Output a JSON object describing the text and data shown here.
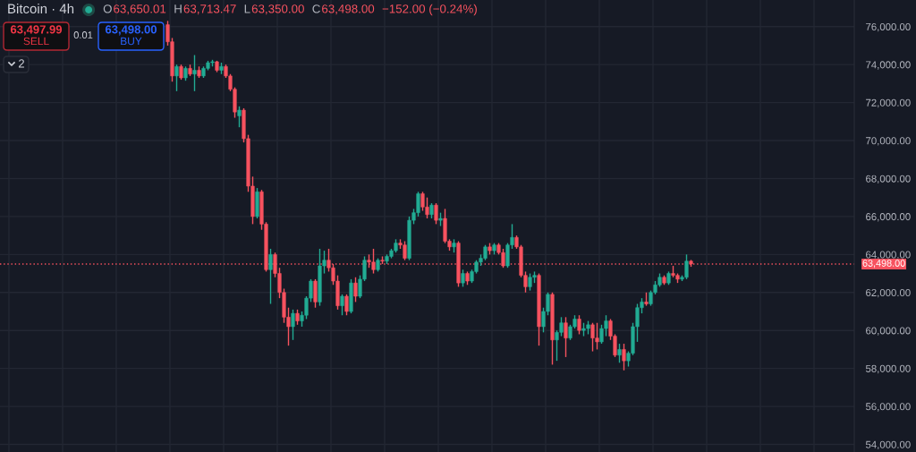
{
  "chart_data": {
    "type": "candlestick",
    "title": "Bitcoin · 4h",
    "categories": [
      null,
      null,
      null,
      null,
      null,
      null,
      null,
      null,
      null,
      null,
      null,
      null,
      null,
      null,
      null,
      null,
      null,
      null,
      null,
      null,
      null,
      null,
      null,
      null,
      null,
      null,
      null,
      null,
      null,
      null,
      null,
      null,
      null,
      null,
      null,
      null,
      null,
      null,
      null,
      null,
      null,
      null,
      null,
      null,
      null,
      null,
      null,
      null,
      null,
      null,
      null,
      null,
      null,
      null,
      null,
      null,
      null,
      null,
      null,
      null,
      null,
      null,
      null,
      null,
      null,
      null,
      null,
      null,
      null,
      null,
      null,
      null,
      null,
      null,
      null,
      null,
      null,
      null,
      null,
      null,
      null,
      null,
      null,
      null,
      null,
      null,
      null,
      null,
      null,
      null,
      null,
      null,
      null,
      null,
      null,
      null,
      null,
      null,
      null,
      null,
      null,
      null,
      null,
      null,
      null,
      null,
      null,
      null,
      null,
      null,
      null,
      null,
      null,
      null,
      null,
      null,
      null,
      null,
      null,
      null,
      null,
      null,
      null,
      null,
      null,
      null,
      null,
      null,
      null,
      null,
      null,
      null,
      null,
      null,
      null,
      null,
      null,
      null,
      null,
      null,
      null,
      null,
      null,
      null,
      null,
      null,
      null,
      null,
      null,
      null,
      null,
      null,
      null,
      null,
      null,
      null,
      null,
      null,
      null,
      null,
      null,
      null,
      null,
      null,
      null,
      null,
      null,
      null,
      null,
      null,
      null,
      null,
      null,
      null,
      null,
      null,
      null,
      null,
      null,
      null,
      null,
      null,
      null,
      null,
      null,
      null,
      null,
      null,
      null,
      null,
      null
    ],
    "ohlc": [
      null,
      null,
      null,
      null,
      null,
      null,
      null,
      null,
      null,
      null,
      null,
      null,
      null,
      null,
      null,
      null,
      null,
      null,
      null,
      null,
      null,
      null,
      null,
      null,
      null,
      null,
      null,
      null,
      null,
      null,
      null,
      null,
      null,
      null,
      null,
      null,
      null,
      [
        76100,
        76300,
        75000,
        75200
      ],
      [
        75200,
        75400,
        73100,
        73400
      ],
      [
        73400,
        74000,
        72600,
        73900
      ],
      [
        73900,
        74000,
        73200,
        73300
      ],
      [
        73300,
        73900,
        73150,
        73800
      ],
      [
        73800,
        74000,
        73400,
        73500
      ],
      [
        73500,
        74500,
        72600,
        73700
      ],
      [
        73700,
        73900,
        73300,
        73400
      ],
      [
        73400,
        73900,
        73300,
        73800
      ],
      [
        73800,
        74200,
        73700,
        74100
      ],
      [
        74100,
        74250,
        73900,
        74150
      ],
      [
        74150,
        74200,
        73600,
        73700
      ],
      [
        73700,
        74100,
        73500,
        73900
      ],
      [
        73900,
        74000,
        73300,
        73400
      ],
      [
        73400,
        73500,
        72600,
        72700
      ],
      [
        72700,
        72800,
        71200,
        71500
      ],
      [
        71300,
        71800,
        70700,
        71600
      ],
      [
        71600,
        71700,
        69900,
        70100
      ],
      [
        70100,
        70300,
        67300,
        67600
      ],
      [
        67600,
        68100,
        65600,
        66000
      ],
      [
        66000,
        67500,
        65900,
        67300
      ],
      [
        67300,
        67400,
        65300,
        65600
      ],
      [
        65600,
        65700,
        63100,
        63200
      ],
      [
        63200,
        64300,
        61400,
        64000
      ],
      [
        64000,
        64100,
        62800,
        63000
      ],
      [
        63000,
        63300,
        61700,
        62000
      ],
      [
        62000,
        62200,
        60400,
        60700
      ],
      [
        60700,
        61200,
        59200,
        60200
      ],
      [
        60200,
        61100,
        59500,
        60900
      ],
      [
        60900,
        61100,
        60300,
        60500
      ],
      [
        60500,
        61000,
        60200,
        60800
      ],
      [
        60800,
        61800,
        60600,
        61700
      ],
      [
        61700,
        62700,
        61500,
        62600
      ],
      [
        62600,
        62700,
        61200,
        61500
      ],
      [
        61500,
        64300,
        61300,
        63400
      ],
      [
        63400,
        64200,
        63000,
        63700
      ],
      [
        63700,
        64300,
        63100,
        63300
      ],
      [
        63300,
        63500,
        62400,
        62600
      ],
      [
        62600,
        62900,
        61100,
        61300
      ],
      [
        61300,
        61900,
        60800,
        61800
      ],
      [
        61800,
        61900,
        60800,
        61000
      ],
      [
        61000,
        62700,
        60900,
        62500
      ],
      [
        62500,
        62800,
        61500,
        61800
      ],
      [
        61800,
        62900,
        61700,
        62700
      ],
      [
        62700,
        63900,
        62600,
        63700
      ],
      [
        63700,
        64000,
        63300,
        63600
      ],
      [
        63600,
        64300,
        63000,
        63200
      ],
      [
        63200,
        63800,
        63100,
        63700
      ],
      [
        63700,
        63900,
        63500,
        63650
      ],
      [
        63650,
        64000,
        63500,
        63900
      ],
      [
        63900,
        64300,
        63800,
        64200
      ],
      [
        64200,
        64800,
        64100,
        64600
      ],
      [
        64600,
        64800,
        64300,
        64500
      ],
      [
        64500,
        64700,
        63700,
        63800
      ],
      [
        63800,
        66000,
        63700,
        65800
      ],
      [
        65800,
        66400,
        65600,
        66200
      ],
      [
        66200,
        67300,
        66000,
        67200
      ],
      [
        67200,
        67300,
        66300,
        66500
      ],
      [
        66500,
        67000,
        65900,
        66100
      ],
      [
        66100,
        66700,
        65900,
        66600
      ],
      [
        66600,
        66700,
        65600,
        65800
      ],
      [
        65800,
        66200,
        65500,
        65900
      ],
      [
        65900,
        66400,
        64600,
        64700
      ],
      [
        64700,
        64800,
        64200,
        64400
      ],
      [
        64400,
        64800,
        64100,
        64600
      ],
      [
        64600,
        64700,
        62300,
        62500
      ],
      [
        62500,
        63200,
        62300,
        63000
      ],
      [
        63000,
        63100,
        62400,
        62600
      ],
      [
        62600,
        63200,
        62500,
        63100
      ],
      [
        63100,
        63700,
        63000,
        63600
      ],
      [
        63600,
        64000,
        63400,
        63800
      ],
      [
        63800,
        64500,
        63700,
        64400
      ],
      [
        64400,
        64600,
        64000,
        64200
      ],
      [
        64200,
        64600,
        64000,
        64500
      ],
      [
        64500,
        64600,
        64000,
        64100
      ],
      [
        64100,
        64300,
        63300,
        63400
      ],
      [
        63400,
        64600,
        63300,
        64500
      ],
      [
        64500,
        65600,
        64300,
        64900
      ],
      [
        64900,
        65000,
        64300,
        64400
      ],
      [
        64400,
        64500,
        62800,
        62900
      ],
      [
        62900,
        63100,
        62000,
        62300
      ],
      [
        62300,
        63000,
        62100,
        62800
      ],
      [
        62800,
        63100,
        62500,
        62900
      ],
      [
        62900,
        63000,
        59200,
        60200
      ],
      [
        60200,
        61200,
        59900,
        61000
      ],
      [
        61000,
        62000,
        60800,
        61900
      ],
      [
        61900,
        62000,
        58200,
        59500
      ],
      [
        59500,
        60000,
        58400,
        59900
      ],
      [
        59900,
        60700,
        59700,
        60400
      ],
      [
        60400,
        60700,
        58600,
        59600
      ],
      [
        59600,
        60300,
        59500,
        60200
      ],
      [
        60200,
        60800,
        60100,
        60600
      ],
      [
        60600,
        60800,
        59800,
        60000
      ],
      [
        60000,
        60400,
        59700,
        60100
      ],
      [
        60100,
        60500,
        59800,
        60300
      ],
      [
        60300,
        60400,
        58900,
        59600
      ],
      [
        59600,
        60400,
        59000,
        59400
      ],
      [
        59400,
        60300,
        59300,
        60100
      ],
      [
        60100,
        60800,
        59700,
        60500
      ],
      [
        60500,
        60600,
        59500,
        59700
      ],
      [
        59700,
        59800,
        58600,
        58700
      ],
      [
        58700,
        59300,
        58300,
        59000
      ],
      [
        59000,
        59300,
        57900,
        58400
      ],
      [
        58400,
        58900,
        58100,
        58800
      ],
      [
        58800,
        60400,
        58700,
        60200
      ],
      [
        60200,
        61400,
        59400,
        61200
      ],
      [
        61200,
        61700,
        60900,
        61500
      ],
      [
        61500,
        62000,
        61300,
        61400
      ],
      [
        61400,
        62100,
        61300,
        62000
      ],
      [
        62000,
        62600,
        61900,
        62400
      ],
      [
        62400,
        63000,
        62300,
        62800
      ],
      [
        62800,
        62900,
        62400,
        62500
      ],
      [
        62500,
        63100,
        62400,
        63000
      ],
      [
        63000,
        63400,
        62800,
        62900
      ],
      [
        62900,
        63000,
        62500,
        62700
      ],
      [
        62700,
        62900,
        62600,
        62800
      ],
      [
        62800,
        64000,
        62700,
        63650
      ],
      [
        63650.01,
        63713.47,
        63350,
        63498
      ],
      null,
      null,
      null,
      null,
      null,
      null,
      null,
      null,
      null,
      null,
      null,
      null,
      null,
      null,
      null,
      null,
      null,
      null,
      null,
      null,
      null,
      null,
      null,
      null,
      null,
      null,
      null,
      null,
      null,
      null,
      null,
      null,
      null,
      null,
      null,
      null
    ],
    "colors": [
      null,
      null,
      null,
      null,
      null,
      null,
      null,
      null,
      null,
      null,
      null,
      null,
      null,
      null,
      null,
      null,
      null,
      null,
      null,
      null,
      null,
      null,
      null,
      null,
      null,
      null,
      null,
      null,
      null,
      null,
      null,
      null,
      null,
      null,
      null,
      null,
      null,
      "#f7525f",
      "#f7525f",
      "#22ab94",
      "#f7525f",
      "#22ab94",
      "#f7525f",
      "#22ab94",
      "#f7525f",
      "#22ab94",
      "#22ab94",
      "#22ab94",
      "#f7525f",
      "#22ab94",
      "#f7525f",
      "#f7525f",
      "#f7525f",
      "#22ab94",
      "#f7525f",
      "#f7525f",
      "#f7525f",
      "#22ab94",
      "#f7525f",
      "#f7525f",
      "#22ab94",
      "#f7525f",
      "#f7525f",
      "#f7525f",
      "#f7525f",
      "#22ab94",
      "#f7525f",
      "#22ab94",
      "#22ab94",
      "#22ab94",
      "#f7525f",
      "#22ab94",
      "#22ab94",
      "#f7525f",
      "#f7525f",
      "#f7525f",
      "#22ab94",
      "#f7525f",
      "#22ab94",
      "#f7525f",
      "#22ab94",
      "#22ab94",
      "#f7525f",
      "#f7525f",
      "#22ab94",
      "#f7525f",
      "#22ab94",
      "#22ab94",
      "#22ab94",
      "#f7525f",
      "#f7525f",
      "#22ab94",
      "#22ab94",
      "#22ab94",
      "#f7525f",
      "#f7525f",
      "#22ab94",
      "#f7525f",
      "#22ab94",
      "#f7525f",
      "#f7525f",
      "#22ab94",
      "#f7525f",
      "#22ab94",
      "#f7525f",
      "#22ab94",
      "#22ab94",
      "#22ab94",
      "#22ab94",
      "#f7525f",
      "#22ab94",
      "#f7525f",
      "#f7525f",
      "#22ab94",
      "#22ab94",
      "#f7525f",
      "#f7525f",
      "#f7525f",
      "#22ab94",
      "#22ab94",
      "#f7525f",
      "#22ab94",
      "#22ab94",
      "#f7525f",
      "#22ab94",
      "#22ab94",
      "#f7525f",
      "#22ab94",
      "#22ab94",
      "#f7525f",
      "#22ab94",
      "#22ab94",
      "#f7525f",
      "#f7525f",
      "#22ab94",
      "#22ab94",
      "#f7525f",
      "#f7525f",
      "#22ab94",
      "#f7525f",
      "#22ab94",
      "#22ab94",
      "#22ab94",
      "#22ab94",
      "#f7525f",
      "#22ab94",
      "#22ab94",
      "#22ab94",
      "#f7525f",
      "#22ab94",
      "#f7525f",
      "#f7525f",
      "#22ab94",
      "#22ab94",
      "#f7525f",
      null,
      null,
      null,
      null,
      null,
      null,
      null,
      null,
      null,
      null,
      null,
      null,
      null,
      null,
      null,
      null,
      null,
      null,
      null,
      null,
      null,
      null,
      null,
      null,
      null,
      null,
      null,
      null,
      null,
      null,
      null,
      null,
      null,
      null,
      null,
      null
    ],
    "ylim": [
      53600,
      77400
    ],
    "yticks": [
      {
        "value": 54000,
        "label": "54,000.00"
      },
      {
        "value": 56000,
        "label": "56,000.00"
      },
      {
        "value": 58000,
        "label": "58,000.00"
      },
      {
        "value": 60000,
        "label": "60,000.00"
      },
      {
        "value": 62000,
        "label": "62,000.00"
      },
      {
        "value": 64000,
        "label": "64,000.00"
      },
      {
        "value": 66000,
        "label": "66,000.00"
      },
      {
        "value": 68000,
        "label": "68,000.00"
      },
      {
        "value": 70000,
        "label": "70,000.00"
      },
      {
        "value": 72000,
        "label": "72,000.00"
      },
      {
        "value": 74000,
        "label": "74,000.00"
      },
      {
        "value": 76000,
        "label": "76,000.00"
      }
    ],
    "grid": true,
    "ref_lines": [
      {
        "axis": "y",
        "value": 63498,
        "label": "63,498.00",
        "color": "#f7525f",
        "line_style": "dotted"
      }
    ],
    "annotations": [
      "O",
      "63,650.01",
      "H",
      "63,713.47",
      "L",
      "63,350.00",
      "C",
      "63,498.00",
      "−152.00 (−0.24%)",
      "63,497.99",
      "SELL",
      "0.01",
      "63,498.00",
      "BUY",
      "2"
    ]
  }
}
